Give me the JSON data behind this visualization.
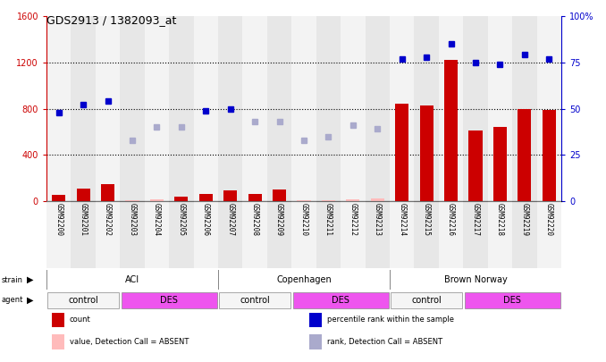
{
  "title": "GDS2913 / 1382093_at",
  "samples": [
    "GSM92200",
    "GSM92201",
    "GSM92202",
    "GSM92203",
    "GSM92204",
    "GSM92205",
    "GSM92206",
    "GSM92207",
    "GSM92208",
    "GSM92209",
    "GSM92210",
    "GSM92211",
    "GSM92212",
    "GSM92213",
    "GSM92214",
    "GSM92215",
    "GSM92216",
    "GSM92217",
    "GSM92218",
    "GSM92219",
    "GSM92220"
  ],
  "count_values": [
    55,
    105,
    145,
    8,
    12,
    35,
    65,
    90,
    65,
    100,
    8,
    8,
    18,
    20,
    840,
    830,
    1220,
    610,
    640,
    800,
    790
  ],
  "count_absent": [
    false,
    false,
    false,
    true,
    true,
    false,
    false,
    false,
    false,
    false,
    true,
    true,
    true,
    true,
    false,
    false,
    false,
    false,
    false,
    false,
    false
  ],
  "rank_values": [
    48,
    52,
    54,
    33,
    40,
    40,
    49,
    50,
    43,
    43,
    33,
    35,
    41,
    39,
    77,
    78,
    85,
    75,
    74,
    79,
    77
  ],
  "rank_absent": [
    false,
    false,
    false,
    true,
    true,
    true,
    false,
    false,
    true,
    true,
    true,
    true,
    true,
    true,
    false,
    false,
    false,
    false,
    false,
    false,
    false
  ],
  "ylim_left": [
    0,
    1600
  ],
  "ylim_right": [
    0,
    100
  ],
  "yticks_left": [
    0,
    400,
    800,
    1200,
    1600
  ],
  "yticks_right": [
    0,
    25,
    50,
    75,
    100
  ],
  "strain_groups": [
    {
      "label": "ACI",
      "start": 0,
      "end": 7
    },
    {
      "label": "Copenhagen",
      "start": 7,
      "end": 14
    },
    {
      "label": "Brown Norway",
      "start": 14,
      "end": 21
    }
  ],
  "agent_groups": [
    {
      "label": "control",
      "start": 0,
      "end": 3,
      "color": "#f5f5f5"
    },
    {
      "label": "DES",
      "start": 3,
      "end": 7,
      "color": "#ee55ee"
    },
    {
      "label": "control",
      "start": 7,
      "end": 10,
      "color": "#f5f5f5"
    },
    {
      "label": "DES",
      "start": 10,
      "end": 14,
      "color": "#ee55ee"
    },
    {
      "label": "control",
      "start": 14,
      "end": 17,
      "color": "#f5f5f5"
    },
    {
      "label": "DES",
      "start": 17,
      "end": 21,
      "color": "#ee55ee"
    }
  ],
  "color_count_present": "#cc0000",
  "color_count_absent": "#ffbbbb",
  "color_rank_present": "#0000cc",
  "color_rank_absent": "#aaaacc",
  "strain_color": "#aaffaa",
  "col_bg_odd": "#e8e8e8",
  "col_bg_even": "#d0d0d0",
  "background_color": "#ffffff",
  "left_axis_color": "#cc0000",
  "right_axis_color": "#0000cc"
}
